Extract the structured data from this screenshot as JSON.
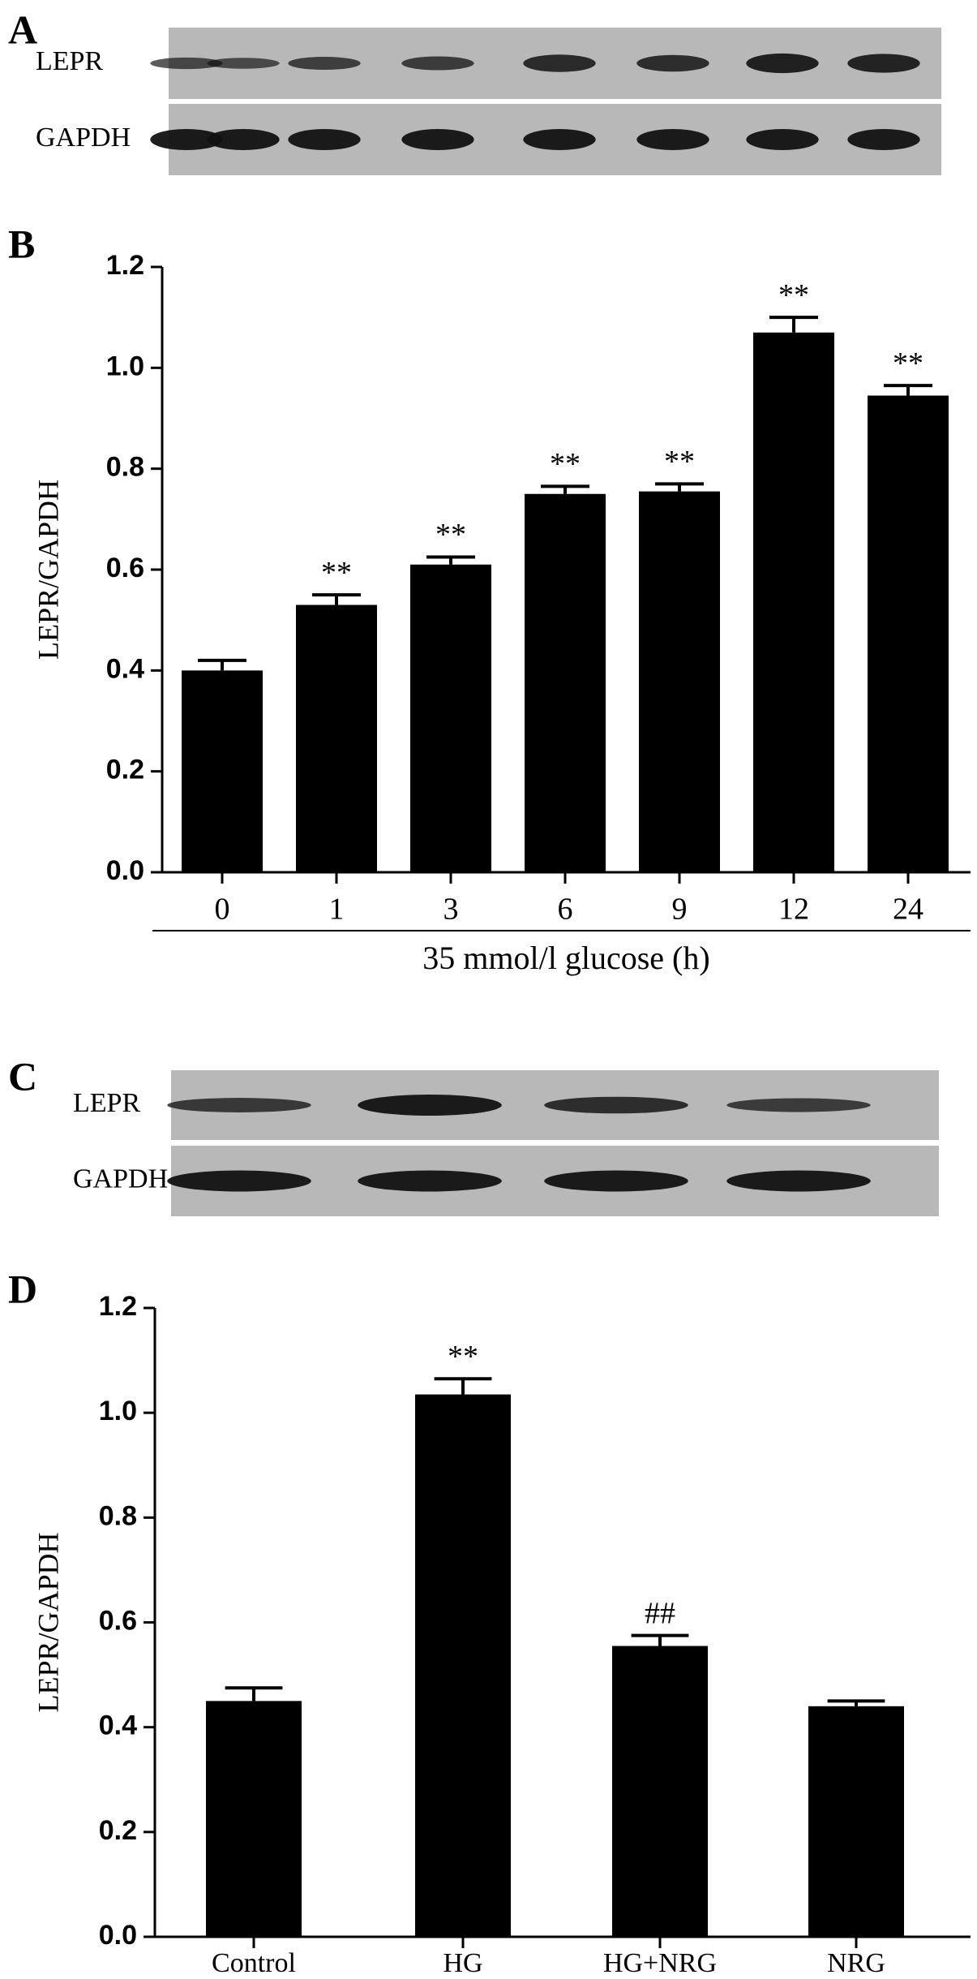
{
  "panels": [
    {
      "label": "A",
      "rows": [
        "LEPR",
        "GAPDH"
      ]
    },
    {
      "label": "B"
    },
    {
      "label": "C",
      "rows": [
        "LEPR",
        "GAPDH"
      ]
    },
    {
      "label": "D"
    }
  ],
  "chart_data": [
    {
      "type": "bar",
      "categories": [
        "0",
        "1",
        "3",
        "6",
        "9",
        "12",
        "24"
      ],
      "values": [
        0.4,
        0.53,
        0.61,
        0.75,
        0.755,
        1.07,
        0.945
      ],
      "errors": [
        0.02,
        0.02,
        0.015,
        0.015,
        0.015,
        0.03,
        0.02
      ],
      "markers": [
        null,
        "**",
        "**",
        "**",
        "**",
        "**",
        "**"
      ],
      "xlabel": "35 mmol/l  glucose (h)",
      "ylabel": "LEPR/GAPDH",
      "color": "#000000",
      "ylim": [
        0,
        1.2
      ],
      "yticks": [
        {
          "value": 0,
          "label": "0.0"
        },
        0.2,
        0.4,
        0.6,
        0.8,
        {
          "value": 1,
          "label": "1.0"
        },
        1.2
      ]
    },
    {
      "type": "bar",
      "categories": [
        "Control",
        "HG",
        "HG+NRG",
        "NRG"
      ],
      "values": [
        0.45,
        1.035,
        0.555,
        0.44
      ],
      "errors": [
        0.025,
        0.03,
        0.02,
        0.01
      ],
      "markers": [
        null,
        "**",
        "##",
        null
      ],
      "ylabel": "LEPR/GAPDH",
      "color": "#000000",
      "ylim": [
        0,
        1.2
      ],
      "yticks": [
        {
          "value": 0,
          "label": "0.0"
        },
        0.2,
        0.4,
        0.6,
        0.8,
        {
          "value": 1,
          "label": "1.0"
        },
        1.2
      ]
    }
  ]
}
